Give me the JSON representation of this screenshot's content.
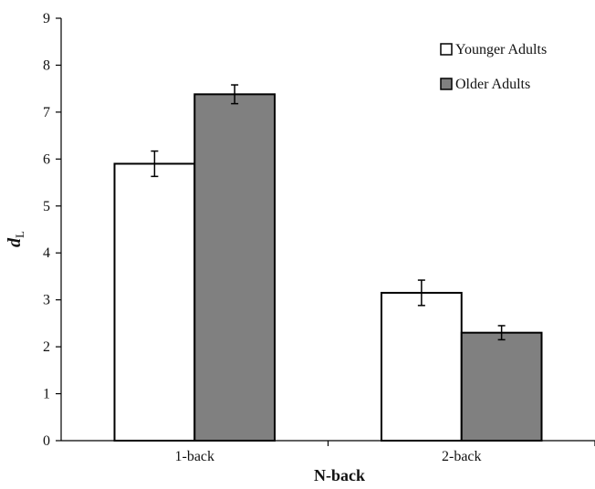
{
  "chart_data": {
    "type": "bar",
    "title": "",
    "xlabel": "N-back",
    "ylabel": "d",
    "ylabel_subscript": "L",
    "categories": [
      "1-back",
      "2-back"
    ],
    "ylim": [
      0,
      9
    ],
    "yticks": [
      "0",
      "1",
      "2",
      "3",
      "4",
      "5",
      "6",
      "7",
      "8",
      "9"
    ],
    "grid": false,
    "legend_position": "top-right",
    "series": [
      {
        "name": "Younger Adults",
        "values": [
          5.9,
          3.15
        ],
        "errors": [
          0.27,
          0.27
        ],
        "color": "#ffffff"
      },
      {
        "name": "Older Adults",
        "values": [
          7.38,
          2.3
        ],
        "errors": [
          0.2,
          0.15
        ],
        "color": "#808080"
      }
    ]
  }
}
